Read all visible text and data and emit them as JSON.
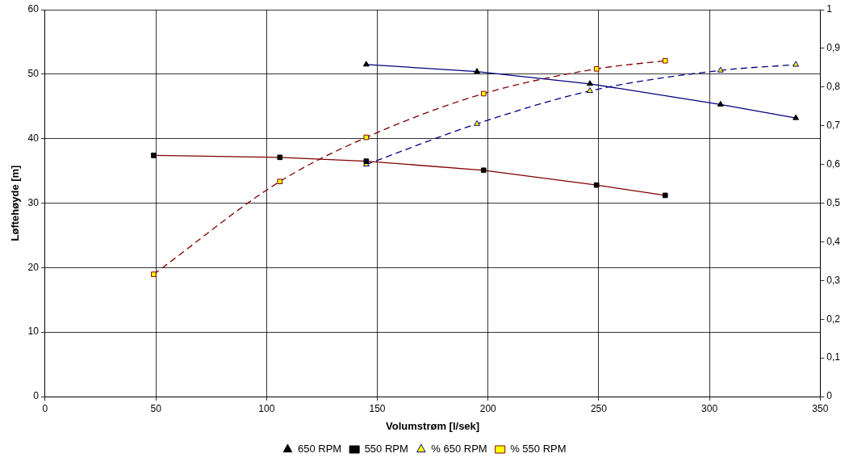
{
  "chart_data": {
    "type": "line",
    "xlabel": "Volumstrøm [l/sek]",
    "ylabel": "Løftehøyde [m]",
    "xlim": [
      0,
      350
    ],
    "xticks": [
      0,
      50,
      100,
      150,
      200,
      250,
      300,
      350
    ],
    "ylim": [
      0,
      60
    ],
    "yticks": [
      0,
      10,
      20,
      30,
      40,
      50,
      60
    ],
    "y2lim": [
      0,
      1
    ],
    "y2ticks": [
      0,
      {
        "value": 0.1,
        "label": "0,1"
      },
      {
        "value": 0.2,
        "label": "0,2"
      },
      {
        "value": 0.3,
        "label": "0,3"
      },
      {
        "value": 0.4,
        "label": "0,4"
      },
      {
        "value": 0.5,
        "label": "0,5"
      },
      {
        "value": 0.6,
        "label": "0,6"
      },
      {
        "value": 0.7,
        "label": "0,7"
      },
      {
        "value": 0.8,
        "label": "0,8"
      },
      {
        "value": 0.9,
        "label": "0,9"
      },
      1
    ],
    "grid": true,
    "legend": "bottom",
    "series": [
      {
        "name": "650 RPM",
        "color": "#000080",
        "marker": "triangle",
        "line_style": "solid",
        "x": [
          145,
          195,
          246,
          305,
          339
        ],
        "values": [
          51.5,
          50.4,
          48.5,
          45.3,
          43.2
        ]
      },
      {
        "name": "550 RPM",
        "color": "#800000",
        "marker": "square",
        "line_style": "solid",
        "x": [
          49,
          106,
          145,
          198,
          249,
          280
        ],
        "values": [
          37.4,
          37.1,
          36.5,
          35.1,
          32.8,
          31.2
        ]
      },
      {
        "name": "% 650 RPM",
        "color": "#000080",
        "marker": "triangle",
        "line_style": "dashed",
        "axis": "y2",
        "x": [
          145,
          195,
          246,
          305,
          339
        ],
        "values": [
          0.6,
          0.705,
          0.79,
          0.843,
          0.858
        ]
      },
      {
        "name": "% 550 RPM",
        "color": "#800000",
        "marker": "square",
        "line_style": "dashed",
        "axis": "y2",
        "x": [
          49,
          106,
          145,
          198,
          249,
          280
        ],
        "values": [
          0.316,
          0.556,
          0.67,
          0.783,
          0.847,
          0.868
        ]
      }
    ]
  }
}
